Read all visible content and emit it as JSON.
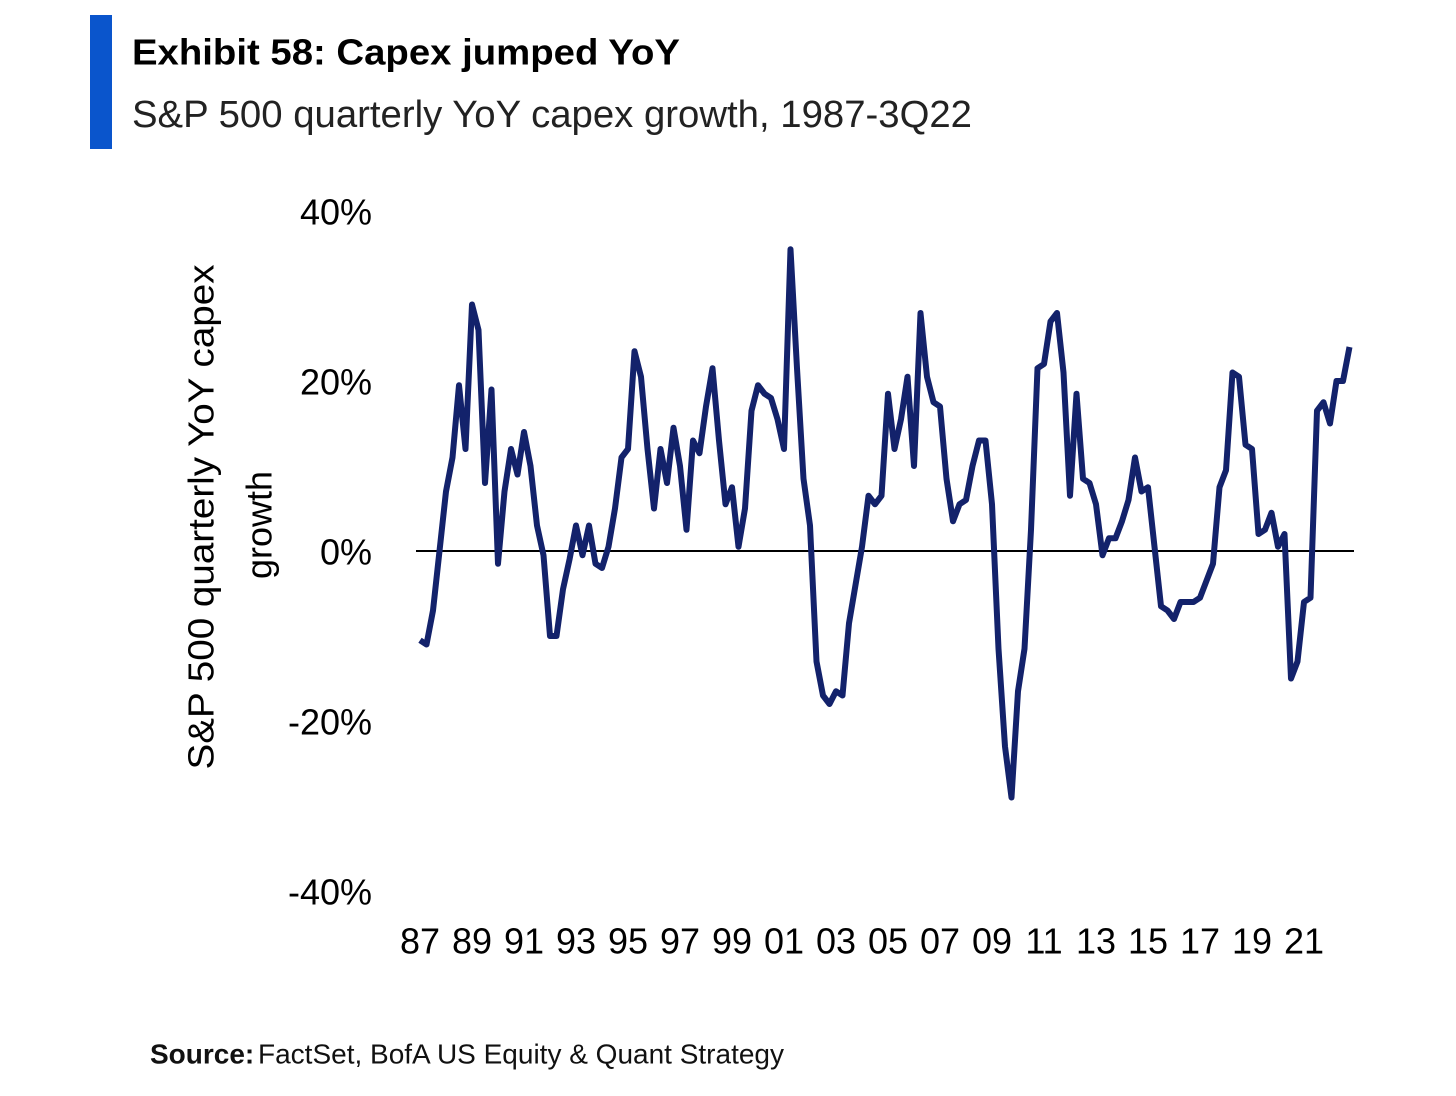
{
  "chart_data": {
    "type": "line",
    "title": "Exhibit 58: Capex jumped YoY",
    "subtitle": "S&P 500 quarterly YoY capex growth, 1987-3Q22",
    "y_label": [
      "S&P 500  quarterly  YoY capex",
      "growth"
    ],
    "source_label": "Source:",
    "source": "FactSet, BofA US Equity & Quant Strategy",
    "categories": [
      "87",
      null,
      null,
      null,
      null,
      null,
      null,
      null,
      "89",
      null,
      null,
      null,
      null,
      null,
      null,
      null,
      "91",
      null,
      null,
      null,
      null,
      null,
      null,
      null,
      "93",
      null,
      null,
      null,
      null,
      null,
      null,
      null,
      "95",
      null,
      null,
      null,
      null,
      null,
      null,
      null,
      "97",
      null,
      null,
      null,
      null,
      null,
      null,
      null,
      "99",
      null,
      null,
      null,
      null,
      null,
      null,
      null,
      "01",
      null,
      null,
      null,
      null,
      null,
      null,
      null,
      "03",
      null,
      null,
      null,
      null,
      null,
      null,
      null,
      "05",
      null,
      null,
      null,
      null,
      null,
      null,
      null,
      "07",
      null,
      null,
      null,
      null,
      null,
      null,
      null,
      "09",
      null,
      null,
      null,
      null,
      null,
      null,
      null,
      "11",
      null,
      null,
      null,
      null,
      null,
      null,
      null,
      "13",
      null,
      null,
      null,
      null,
      null,
      null,
      null,
      "15",
      null,
      null,
      null,
      null,
      null,
      null,
      null,
      "17",
      null,
      null,
      null,
      null,
      null,
      null,
      null,
      "19",
      null,
      null,
      null,
      null,
      null,
      null,
      null,
      "21",
      null,
      null,
      null,
      null,
      null,
      null,
      null
    ],
    "series": [
      {
        "name": "S&P 500 quarterly YoY capex growth",
        "color": "#13226b",
        "values": [
          -10.5,
          -11,
          -7,
          0,
          7,
          11,
          19.5,
          12,
          29,
          26,
          8,
          19,
          -1.5,
          7,
          12,
          9,
          14,
          10,
          3,
          -0.5,
          -10,
          -10,
          -4.5,
          -1,
          3,
          -0.5,
          3,
          -1.5,
          -2,
          0.5,
          5,
          11,
          12,
          23.5,
          20.5,
          12,
          5,
          12,
          8,
          14.5,
          10,
          2.5,
          13,
          11.5,
          17,
          21.5,
          13,
          5.5,
          7.5,
          0.5,
          5,
          16.5,
          19.5,
          18.5,
          18,
          15.5,
          12,
          35.5,
          21.5,
          8.5,
          3,
          -13,
          -17,
          -18,
          -16.5,
          -17,
          -8.5,
          -4,
          0.5,
          6.5,
          5.5,
          6.5,
          18.5,
          12,
          15.5,
          20.5,
          10,
          28,
          20.5,
          17.5,
          17,
          8.5,
          3.5,
          5.5,
          6,
          10,
          13,
          13,
          5.5,
          -11.5,
          -23,
          -29,
          -16.5,
          -11.5,
          2.5,
          21.5,
          22,
          27,
          28,
          21,
          6.5,
          18.5,
          8.5,
          8,
          5.5,
          -0.5,
          1.5,
          1.5,
          3.5,
          6,
          11,
          7,
          7.5,
          0.5,
          -6.5,
          -7,
          -8,
          -6,
          -6,
          -6,
          -5.5,
          -3.5,
          -1.5,
          7.5,
          9.5,
          21,
          20.5,
          12.5,
          12,
          2,
          2.5,
          4.5,
          0.5,
          2,
          -15,
          -13,
          -6,
          -5.5,
          16.5,
          17.5,
          15,
          20,
          20,
          24
        ]
      }
    ],
    "ylim": [
      -40,
      40
    ],
    "yticks": [
      {
        "value": 40,
        "label": "40%"
      },
      {
        "value": 20,
        "label": "20%"
      },
      {
        "value": 0,
        "label": "0%"
      },
      {
        "value": -20,
        "label": "-20%"
      },
      {
        "value": -40,
        "label": "-40%"
      }
    ],
    "zero_line": true,
    "grid": false
  }
}
